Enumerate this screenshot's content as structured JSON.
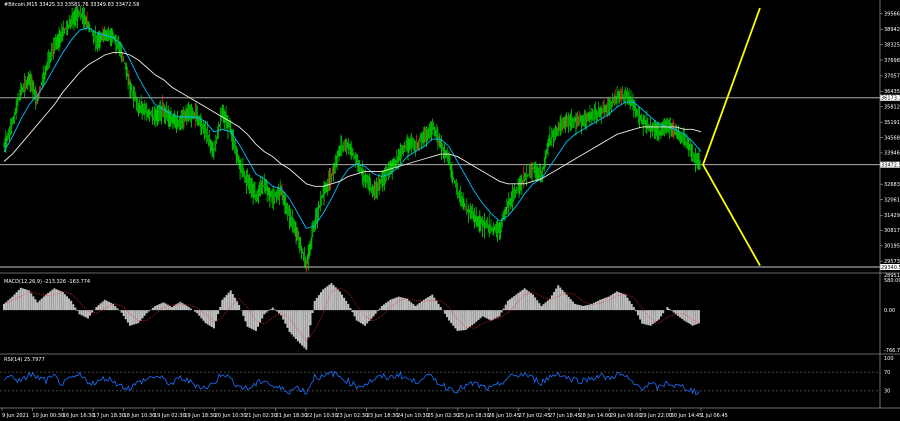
{
  "chart_data": [
    {
      "type": "candlestick",
      "header": "#Bitcoin,M15  33425.33 33581.76 33349.83 33472.58",
      "price_axis": {
        "ticks": [
          39566.2,
          38942.15,
          38325.15,
          37698.05,
          37057.15,
          36435.1,
          35812.05,
          35191.0,
          34568.95,
          33946.9,
          32683.5,
          32061.5,
          31429.3,
          30817.8,
          30195.75,
          29573.7
        ],
        "ylim": [
          29300,
          39800
        ]
      },
      "levels": [
        {
          "value": 36173,
          "label": "36173.17",
          "color": "#c8c8c8"
        },
        {
          "value": 33472,
          "label": "33472.58",
          "color": "#c8c8c8"
        },
        {
          "value": 29340,
          "label": "29340.51",
          "color": "#c8c8c8"
        }
      ],
      "series": [
        {
          "name": "price",
          "color": "#00ff00",
          "values": [
            34200,
            35200,
            36400,
            36900,
            36100,
            37400,
            38200,
            38800,
            39200,
            39600,
            39200,
            38400,
            38800,
            38600,
            38000,
            36700,
            35800,
            35600,
            35400,
            35700,
            35300,
            35200,
            35600,
            35400,
            34800,
            34000,
            35600,
            34900,
            33500,
            32800,
            32200,
            32700,
            32100,
            32400,
            31400,
            30600,
            29400,
            31100,
            32300,
            33000,
            34100,
            34300,
            33600,
            32900,
            32400,
            32800,
            33300,
            33800,
            34300,
            34200,
            34600,
            35000,
            34300,
            33600,
            32400,
            31700,
            31400,
            31100,
            30900,
            30800,
            31900,
            32400,
            32900,
            33300,
            33100,
            34500,
            34900,
            35300,
            35200,
            35300,
            35400,
            35600,
            35800,
            36200,
            36300,
            35900,
            35200,
            35000,
            34800,
            35100,
            34800,
            34500,
            33900,
            33472
          ]
        },
        {
          "name": "fast MA",
          "color": "#00bfff",
          "values": [
            34000,
            34600,
            35300,
            35900,
            36300,
            36800,
            37400,
            38000,
            38500,
            38900,
            39000,
            38800,
            38700,
            38600,
            38300,
            37700,
            37000,
            36400,
            35900,
            35700,
            35500,
            35400,
            35400,
            35400,
            35200,
            34800,
            34900,
            34800,
            34300,
            33700,
            33100,
            32900,
            32600,
            32500,
            32100,
            31500,
            30900,
            31000,
            31500,
            32100,
            32800,
            33300,
            33500,
            33400,
            33100,
            33000,
            33100,
            33400,
            33800,
            34000,
            34200,
            34500,
            34500,
            34200,
            33600,
            33000,
            32400,
            31900,
            31500,
            31200,
            31400,
            31800,
            32300,
            32700,
            32900,
            33400,
            33900,
            34400,
            34700,
            34900,
            35100,
            35300,
            35500,
            35800,
            36000,
            36000,
            35700,
            35400,
            35100,
            35000,
            34900,
            34700,
            34400,
            34000
          ]
        },
        {
          "name": "slow MA",
          "color": "#f0f0e0",
          "values": [
            33600,
            33900,
            34300,
            34700,
            35100,
            35500,
            35900,
            36400,
            36800,
            37200,
            37500,
            37700,
            37900,
            38000,
            38000,
            37900,
            37700,
            37400,
            37100,
            36900,
            36600,
            36400,
            36200,
            36000,
            35800,
            35600,
            35400,
            35200,
            35000,
            34700,
            34300,
            34000,
            33800,
            33500,
            33300,
            33000,
            32700,
            32600,
            32600,
            32700,
            32800,
            33000,
            33100,
            33200,
            33200,
            33200,
            33300,
            33400,
            33500,
            33600,
            33700,
            33800,
            33900,
            33900,
            33800,
            33600,
            33400,
            33200,
            33000,
            32800,
            32700,
            32700,
            32700,
            32800,
            32900,
            33100,
            33300,
            33500,
            33700,
            33900,
            34100,
            34300,
            34500,
            34700,
            34800,
            34900,
            35000,
            35000,
            35000,
            35000,
            35000,
            34900,
            34900,
            34800
          ]
        }
      ],
      "projection": {
        "color": "#ffff00",
        "from": 33472,
        "to_up": 39800,
        "to_down": 29400
      }
    },
    {
      "type": "histogram",
      "header": "MACD(12,26,9) -213.326 -163.774",
      "y_axis": {
        "ticks": [
          {
            "value": 580.004,
            "label": "580.004"
          },
          {
            "value": 0,
            "label": "0.00"
          },
          {
            "value": -766.745,
            "label": "-766.745"
          }
        ],
        "ylim": [
          -766.745,
          580.004
        ],
        "top_label": "28951.66"
      },
      "values": [
        120,
        260,
        430,
        380,
        150,
        300,
        420,
        350,
        180,
        -80,
        -160,
        60,
        200,
        120,
        -50,
        -300,
        -250,
        -60,
        80,
        150,
        60,
        160,
        60,
        -60,
        -250,
        -350,
        200,
        380,
        100,
        -320,
        -400,
        -80,
        50,
        -100,
        -420,
        -600,
        -760,
        180,
        400,
        520,
        360,
        120,
        -200,
        -300,
        -120,
        80,
        200,
        260,
        220,
        80,
        200,
        300,
        60,
        -200,
        -400,
        -380,
        -260,
        -120,
        -200,
        -120,
        180,
        300,
        420,
        300,
        80,
        220,
        480,
        300,
        120,
        80,
        120,
        200,
        260,
        360,
        300,
        60,
        -260,
        -300,
        -180,
        60,
        -80,
        -200,
        -300,
        -240
      ]
    },
    {
      "type": "line",
      "header": "RSI(14) 25.7977",
      "y_axis": {
        "ticks": [
          {
            "value": 100,
            "label": "100"
          },
          {
            "value": 70,
            "label": "70"
          },
          {
            "value": 30,
            "label": "30"
          },
          {
            "value": 0,
            "label": "0"
          }
        ],
        "ylim": [
          0,
          100
        ],
        "levels": [
          70,
          30
        ]
      },
      "series": [
        {
          "name": "RSI",
          "color": "#1e6fff",
          "values": [
            55,
            62,
            48,
            66,
            58,
            52,
            60,
            44,
            56,
            63,
            50,
            46,
            58,
            52,
            40,
            36,
            48,
            55,
            62,
            54,
            44,
            58,
            50,
            42,
            36,
            46,
            70,
            54,
            40,
            34,
            44,
            54,
            40,
            34,
            30,
            38,
            26,
            62,
            58,
            68,
            60,
            50,
            40,
            44,
            54,
            60,
            58,
            66,
            56,
            48,
            62,
            58,
            44,
            36,
            32,
            40,
            46,
            38,
            34,
            44,
            58,
            62,
            66,
            56,
            48,
            60,
            68,
            58,
            54,
            52,
            58,
            62,
            56,
            66,
            60,
            44,
            38,
            44,
            36,
            48,
            40,
            38,
            30,
            26
          ]
        }
      ]
    }
  ],
  "time_axis": [
    "9 Jun 2021",
    "10 Jun 00:30",
    "16 Jun 16:30",
    "17 Jun 18:30",
    "18 Jun 10:30",
    "19 Jun 02:30",
    "19 Jun 18:30",
    "20 Jun 10:30",
    "21 Jun 02:30",
    "21 Jun 18:30",
    "22 Jun 10:30",
    "23 Jun 02:30",
    "23 Jun 18:30",
    "24 Jun 10:30",
    "25 Jun 02:30",
    "25 Jun 18:30",
    "26 Jun 10:45",
    "27 Jun 02:45",
    "27 Jun 18:45",
    "28 Jun 14:00",
    "29 Jun 06:00",
    "29 Jun 22:00",
    "30 Jun 14:45",
    "1 Jul 06:45"
  ],
  "colors": {
    "background": "#000000",
    "grid": "#555555",
    "separator": "#c8c8c8",
    "text": "#ffffff",
    "down_candle": "#ff3030"
  }
}
